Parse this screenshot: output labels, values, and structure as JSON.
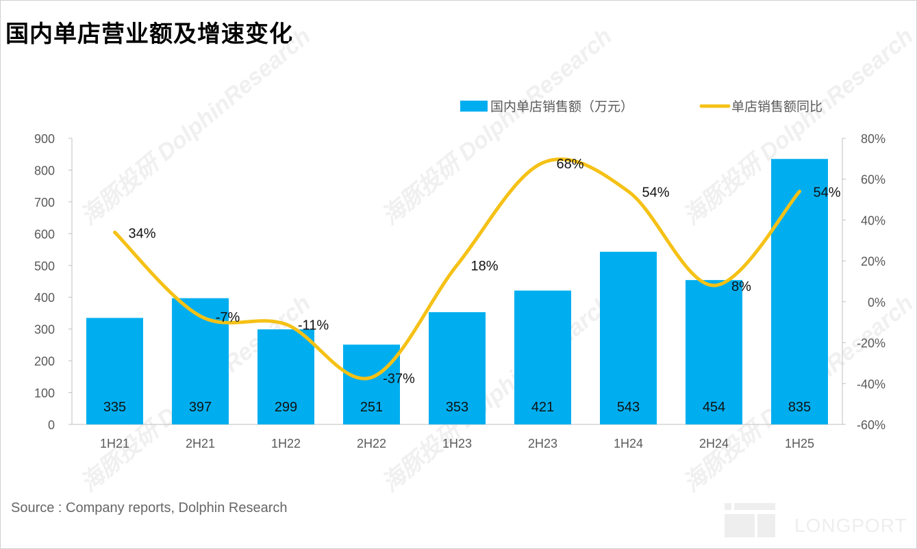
{
  "title": "国内单店营业额及增速变化",
  "source": "Source : Company reports, Dolphin Research",
  "watermark": "海豚投研 DolphinResearch",
  "logo": "LONGPORT",
  "chart_data": {
    "type": "bar+line",
    "categories": [
      "1H21",
      "2H21",
      "1H22",
      "2H22",
      "1H23",
      "2H23",
      "1H24",
      "2H24",
      "1H25"
    ],
    "series": [
      {
        "name": "国内单店销售额（万元）",
        "type": "bar",
        "axis": "left",
        "color": "#00AEEF",
        "values": [
          335,
          397,
          299,
          251,
          353,
          421,
          543,
          454,
          835
        ]
      },
      {
        "name": "单店销售额同比",
        "type": "line",
        "axis": "right",
        "color": "#F5C116",
        "values": [
          34,
          -7,
          -11,
          -37,
          18,
          68,
          54,
          8,
          54
        ],
        "labels": [
          "34%",
          "-7%",
          "-11%",
          "-37%",
          "18%",
          "68%",
          "54%",
          "8%",
          "54%"
        ]
      }
    ],
    "y_left": {
      "range": [
        0,
        900
      ],
      "ticks": [
        "0",
        "100",
        "200",
        "300",
        "400",
        "500",
        "600",
        "700",
        "800",
        "900"
      ]
    },
    "y_right": {
      "range": [
        -60,
        80
      ],
      "ticks": [
        "-60%",
        "-40%",
        "-20%",
        "0%",
        "20%",
        "40%",
        "60%",
        "80%"
      ]
    },
    "grid": false,
    "legend": "top-right"
  }
}
